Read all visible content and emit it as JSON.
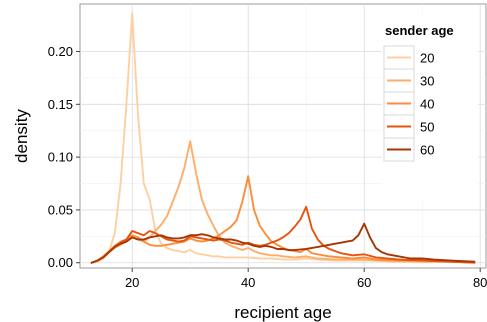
{
  "chart_data": {
    "type": "line",
    "title": "",
    "xlabel": "recipient age",
    "ylabel": "density",
    "xlim": [
      11,
      81
    ],
    "ylim": [
      -0.005,
      0.245
    ],
    "xticks": [
      20,
      40,
      60,
      80
    ],
    "yticks": [
      0.0,
      0.05,
      0.1,
      0.15,
      0.2
    ],
    "xtick_labels": [
      "20",
      "40",
      "60",
      "80"
    ],
    "ytick_labels": [
      "0.00",
      "0.05",
      "0.10",
      "0.15",
      "0.20"
    ],
    "grid": true,
    "legend": {
      "title": "sender age",
      "placement": "top-right"
    },
    "series": [
      {
        "name": "20",
        "color": "#fdd0a2",
        "points": [
          [
            13,
            0.0
          ],
          [
            14,
            0.001
          ],
          [
            15,
            0.004
          ],
          [
            16,
            0.01
          ],
          [
            17,
            0.028
          ],
          [
            18,
            0.075
          ],
          [
            19,
            0.15
          ],
          [
            20,
            0.236
          ],
          [
            21,
            0.14
          ],
          [
            22,
            0.075
          ],
          [
            23,
            0.06
          ],
          [
            24,
            0.03
          ],
          [
            25,
            0.018
          ],
          [
            26,
            0.014
          ],
          [
            27,
            0.012
          ],
          [
            28,
            0.011
          ],
          [
            29,
            0.01
          ],
          [
            30,
            0.012
          ],
          [
            31,
            0.009
          ],
          [
            32,
            0.008
          ],
          [
            33,
            0.007
          ],
          [
            34,
            0.006
          ],
          [
            35,
            0.006
          ],
          [
            36,
            0.005
          ],
          [
            38,
            0.005
          ],
          [
            40,
            0.005
          ],
          [
            42,
            0.004
          ],
          [
            44,
            0.004
          ],
          [
            46,
            0.003
          ],
          [
            48,
            0.003
          ],
          [
            50,
            0.004
          ],
          [
            52,
            0.003
          ],
          [
            55,
            0.002
          ],
          [
            58,
            0.002
          ],
          [
            60,
            0.002
          ],
          [
            62,
            0.002
          ],
          [
            65,
            0.001
          ],
          [
            70,
            0.001
          ],
          [
            75,
            0.001
          ],
          [
            79,
            0.0
          ]
        ]
      },
      {
        "name": "30",
        "color": "#fdae6b",
        "points": [
          [
            13,
            0.0
          ],
          [
            14,
            0.002
          ],
          [
            15,
            0.005
          ],
          [
            16,
            0.01
          ],
          [
            17,
            0.014
          ],
          [
            18,
            0.017
          ],
          [
            19,
            0.02
          ],
          [
            20,
            0.024
          ],
          [
            21,
            0.022
          ],
          [
            22,
            0.02
          ],
          [
            23,
            0.024
          ],
          [
            24,
            0.03
          ],
          [
            25,
            0.036
          ],
          [
            26,
            0.044
          ],
          [
            27,
            0.058
          ],
          [
            28,
            0.072
          ],
          [
            29,
            0.09
          ],
          [
            30,
            0.115
          ],
          [
            31,
            0.085
          ],
          [
            32,
            0.06
          ],
          [
            33,
            0.046
          ],
          [
            34,
            0.035
          ],
          [
            35,
            0.025
          ],
          [
            36,
            0.019
          ],
          [
            37,
            0.016
          ],
          [
            38,
            0.014
          ],
          [
            39,
            0.012
          ],
          [
            40,
            0.014
          ],
          [
            41,
            0.011
          ],
          [
            42,
            0.009
          ],
          [
            43,
            0.008
          ],
          [
            44,
            0.007
          ],
          [
            45,
            0.007
          ],
          [
            46,
            0.006
          ],
          [
            48,
            0.005
          ],
          [
            50,
            0.006
          ],
          [
            52,
            0.004
          ],
          [
            55,
            0.003
          ],
          [
            58,
            0.003
          ],
          [
            60,
            0.003
          ],
          [
            62,
            0.002
          ],
          [
            65,
            0.002
          ],
          [
            70,
            0.001
          ],
          [
            75,
            0.001
          ],
          [
            79,
            0.0
          ]
        ]
      },
      {
        "name": "40",
        "color": "#fd8d3c",
        "points": [
          [
            13,
            0.0
          ],
          [
            14,
            0.002
          ],
          [
            15,
            0.006
          ],
          [
            16,
            0.011
          ],
          [
            17,
            0.016
          ],
          [
            18,
            0.02
          ],
          [
            19,
            0.022
          ],
          [
            20,
            0.026
          ],
          [
            21,
            0.024
          ],
          [
            22,
            0.02
          ],
          [
            23,
            0.017
          ],
          [
            24,
            0.016
          ],
          [
            25,
            0.016
          ],
          [
            26,
            0.017
          ],
          [
            27,
            0.018
          ],
          [
            28,
            0.019
          ],
          [
            29,
            0.02
          ],
          [
            30,
            0.023
          ],
          [
            31,
            0.021
          ],
          [
            32,
            0.02
          ],
          [
            33,
            0.021
          ],
          [
            34,
            0.023
          ],
          [
            35,
            0.026
          ],
          [
            36,
            0.03
          ],
          [
            37,
            0.034
          ],
          [
            38,
            0.04
          ],
          [
            39,
            0.058
          ],
          [
            40,
            0.082
          ],
          [
            41,
            0.05
          ],
          [
            42,
            0.035
          ],
          [
            43,
            0.027
          ],
          [
            44,
            0.02
          ],
          [
            45,
            0.017
          ],
          [
            46,
            0.014
          ],
          [
            47,
            0.012
          ],
          [
            48,
            0.011
          ],
          [
            49,
            0.01
          ],
          [
            50,
            0.013
          ],
          [
            51,
            0.009
          ],
          [
            52,
            0.008
          ],
          [
            54,
            0.006
          ],
          [
            56,
            0.005
          ],
          [
            58,
            0.004
          ],
          [
            60,
            0.005
          ],
          [
            62,
            0.003
          ],
          [
            65,
            0.002
          ],
          [
            70,
            0.002
          ],
          [
            75,
            0.001
          ],
          [
            79,
            0.0
          ]
        ]
      },
      {
        "name": "50",
        "color": "#e6550d",
        "points": [
          [
            13,
            0.0
          ],
          [
            14,
            0.002
          ],
          [
            15,
            0.005
          ],
          [
            16,
            0.01
          ],
          [
            17,
            0.015
          ],
          [
            18,
            0.019
          ],
          [
            19,
            0.022
          ],
          [
            20,
            0.03
          ],
          [
            21,
            0.028
          ],
          [
            22,
            0.026
          ],
          [
            23,
            0.03
          ],
          [
            24,
            0.028
          ],
          [
            25,
            0.025
          ],
          [
            26,
            0.022
          ],
          [
            27,
            0.021
          ],
          [
            28,
            0.02
          ],
          [
            29,
            0.021
          ],
          [
            30,
            0.025
          ],
          [
            31,
            0.024
          ],
          [
            32,
            0.023
          ],
          [
            33,
            0.022
          ],
          [
            34,
            0.021
          ],
          [
            35,
            0.022
          ],
          [
            36,
            0.021
          ],
          [
            37,
            0.019
          ],
          [
            38,
            0.018
          ],
          [
            39,
            0.017
          ],
          [
            40,
            0.019
          ],
          [
            41,
            0.017
          ],
          [
            42,
            0.016
          ],
          [
            43,
            0.017
          ],
          [
            44,
            0.019
          ],
          [
            45,
            0.021
          ],
          [
            46,
            0.024
          ],
          [
            47,
            0.028
          ],
          [
            48,
            0.034
          ],
          [
            49,
            0.041
          ],
          [
            50,
            0.053
          ],
          [
            51,
            0.032
          ],
          [
            52,
            0.022
          ],
          [
            53,
            0.016
          ],
          [
            54,
            0.013
          ],
          [
            55,
            0.011
          ],
          [
            56,
            0.009
          ],
          [
            58,
            0.007
          ],
          [
            60,
            0.008
          ],
          [
            62,
            0.005
          ],
          [
            64,
            0.004
          ],
          [
            66,
            0.003
          ],
          [
            70,
            0.002
          ],
          [
            75,
            0.001
          ],
          [
            79,
            0.0
          ]
        ]
      },
      {
        "name": "60",
        "color": "#a63603",
        "points": [
          [
            13,
            0.0
          ],
          [
            14,
            0.002
          ],
          [
            15,
            0.005
          ],
          [
            16,
            0.01
          ],
          [
            17,
            0.015
          ],
          [
            18,
            0.018
          ],
          [
            19,
            0.02
          ],
          [
            20,
            0.024
          ],
          [
            21,
            0.022
          ],
          [
            22,
            0.022
          ],
          [
            23,
            0.024
          ],
          [
            24,
            0.025
          ],
          [
            25,
            0.026
          ],
          [
            26,
            0.024
          ],
          [
            27,
            0.023
          ],
          [
            28,
            0.023
          ],
          [
            29,
            0.024
          ],
          [
            30,
            0.026
          ],
          [
            31,
            0.026
          ],
          [
            32,
            0.027
          ],
          [
            33,
            0.026
          ],
          [
            34,
            0.024
          ],
          [
            35,
            0.023
          ],
          [
            36,
            0.022
          ],
          [
            37,
            0.022
          ],
          [
            38,
            0.021
          ],
          [
            39,
            0.019
          ],
          [
            40,
            0.018
          ],
          [
            41,
            0.016
          ],
          [
            42,
            0.015
          ],
          [
            43,
            0.016
          ],
          [
            44,
            0.015
          ],
          [
            45,
            0.013
          ],
          [
            46,
            0.013
          ],
          [
            47,
            0.012
          ],
          [
            48,
            0.012
          ],
          [
            50,
            0.013
          ],
          [
            51,
            0.014
          ],
          [
            52,
            0.015
          ],
          [
            53,
            0.016
          ],
          [
            54,
            0.017
          ],
          [
            55,
            0.018
          ],
          [
            56,
            0.019
          ],
          [
            57,
            0.02
          ],
          [
            58,
            0.021
          ],
          [
            59,
            0.026
          ],
          [
            60,
            0.037
          ],
          [
            61,
            0.024
          ],
          [
            62,
            0.014
          ],
          [
            63,
            0.01
          ],
          [
            64,
            0.008
          ],
          [
            66,
            0.006
          ],
          [
            68,
            0.004
          ],
          [
            70,
            0.004
          ],
          [
            72,
            0.003
          ],
          [
            75,
            0.002
          ],
          [
            79,
            0.001
          ]
        ]
      }
    ]
  }
}
